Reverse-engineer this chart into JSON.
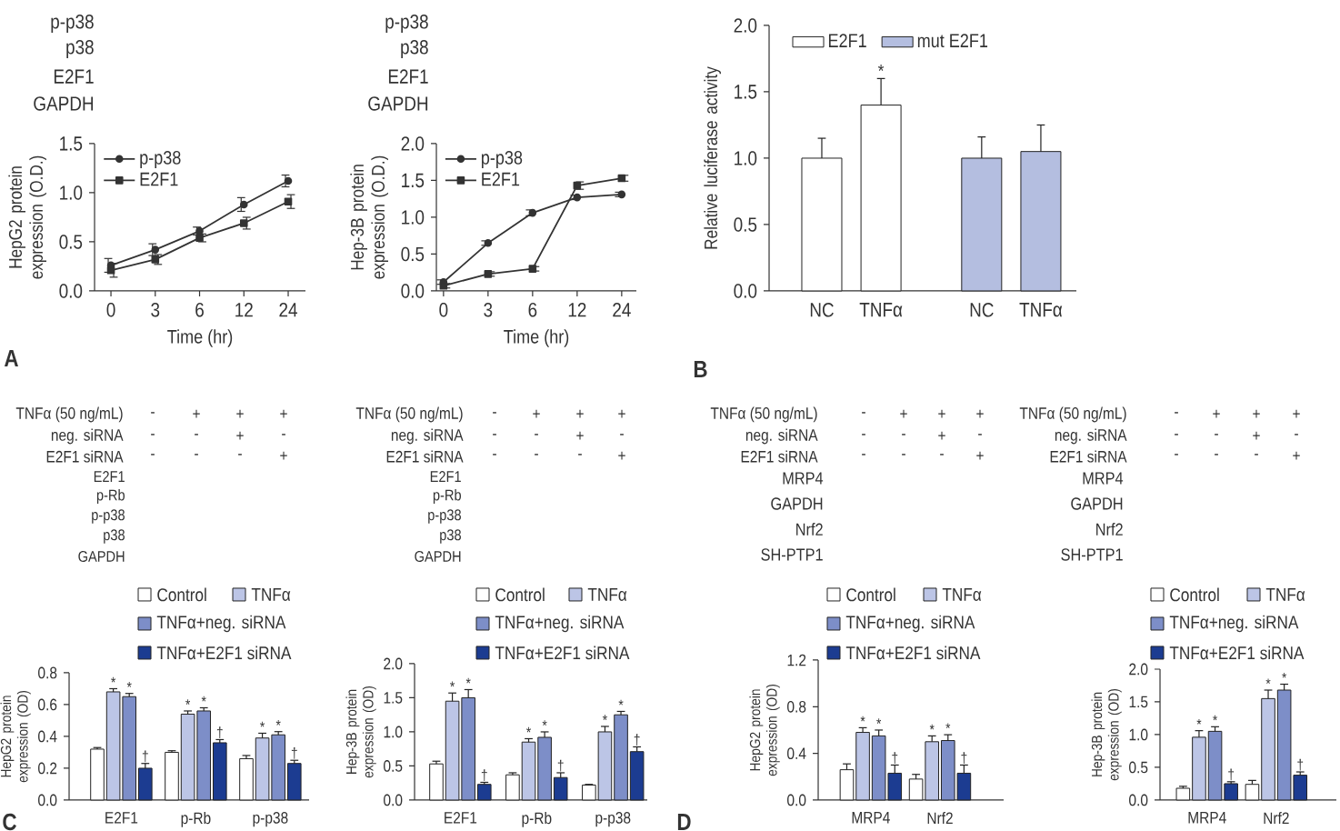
{
  "chart_data": [
    {
      "type": "line",
      "categories": [
        "0",
        "3",
        "6",
        "12",
        "24"
      ],
      "xlabel": "Time (hr)",
      "ylabel": "HepG2 protein expression (O.D.)",
      "ylim": [
        0,
        1.5
      ],
      "yticks": [
        {
          "value": 0,
          "label": "0.0"
        },
        0.5,
        {
          "value": 1,
          "label": "1.0"
        },
        1.5
      ],
      "legend": "top left",
      "series": [
        {
          "name": "p-p38",
          "color": "#333333",
          "marker": "circle",
          "values": [
            0.26,
            0.42,
            0.61,
            0.88,
            1.12
          ],
          "errors": [
            0.07,
            0.06,
            0.04,
            0.07,
            0.06
          ]
        },
        {
          "name": "E2F1",
          "color": "#333333",
          "marker": "square",
          "values": [
            0.21,
            0.32,
            0.54,
            0.69,
            0.91
          ],
          "errors": [
            0.07,
            0.05,
            0.04,
            0.06,
            0.07
          ]
        }
      ],
      "annotations": [
        "p-p38",
        "p38",
        "E2F1",
        "GAPDH",
        "A"
      ]
    },
    {
      "type": "line",
      "categories": [
        "0",
        "3",
        "6",
        "12",
        "24"
      ],
      "xlabel": "Time (hr)",
      "ylabel": "Hep-3B protein expression (O.D.)",
      "ylim": [
        0,
        2
      ],
      "yticks": [
        {
          "value": 0,
          "label": "0.0"
        },
        0.5,
        {
          "value": 1,
          "label": "1.0"
        },
        1.5,
        {
          "value": 2,
          "label": "2.0"
        }
      ],
      "legend": "top left",
      "series": [
        {
          "name": "p-p38",
          "color": "#333333",
          "marker": "circle",
          "values": [
            0.12,
            0.65,
            1.06,
            1.27,
            1.31
          ],
          "errors": [
            0.03,
            0.03,
            0.04,
            0.03,
            0.03
          ]
        },
        {
          "name": "E2F1",
          "color": "#333333",
          "marker": "square",
          "values": [
            0.07,
            0.23,
            0.3,
            1.43,
            1.53
          ],
          "errors": [
            0.03,
            0.03,
            0.03,
            0.05,
            0.04
          ]
        }
      ],
      "annotations": [
        "p-p38",
        "p38",
        "E2F1",
        "GAPDH"
      ]
    },
    {
      "type": "bar",
      "categories": [
        "NC",
        "TNFα",
        "NC",
        "TNFα"
      ],
      "ylabel": "Relative luciferase activity",
      "ylim": [
        0,
        2
      ],
      "yticks": [
        {
          "value": 0,
          "label": "0.0"
        },
        0.5,
        {
          "value": 1,
          "label": "1.0"
        },
        1.5,
        {
          "value": 2,
          "label": "2.0"
        }
      ],
      "legend": "top",
      "series": [
        {
          "name": "E2F1",
          "color": "#ffffff",
          "values": [
            1.0,
            1.4,
            null,
            null
          ],
          "errors": [
            [
              1.0,
              1.15
            ],
            [
              1.4,
              1.6
            ],
            null,
            null
          ],
          "value_labels": [
            null,
            "*",
            null,
            null
          ]
        },
        {
          "name": "mut E2F1",
          "color": "#b4bee0",
          "values": [
            null,
            null,
            1.0,
            1.05
          ],
          "errors": [
            null,
            null,
            [
              1.0,
              1.16
            ],
            [
              1.05,
              1.25
            ]
          ]
        }
      ],
      "annotations": [
        "B"
      ]
    },
    {
      "type": "bar",
      "categories": [
        "E2F1",
        "p-Rb",
        "p-p38"
      ],
      "ylabel": "HepG2 protein expression (OD)",
      "ylim": [
        0,
        0.8
      ],
      "yticks": [
        {
          "value": 0,
          "label": "0.0"
        },
        0.2,
        0.4,
        0.6,
        0.8
      ],
      "legend": "top",
      "series": [
        {
          "name": "Control",
          "color": "#ffffff",
          "values": [
            0.32,
            0.3,
            0.26
          ],
          "errors": [
            [
              0.32,
              0.33
            ],
            [
              0.3,
              0.31
            ],
            [
              0.26,
              0.28
            ]
          ]
        },
        {
          "name": "TNFα",
          "color": "#bcc5e6",
          "values": [
            0.68,
            0.54,
            0.39
          ],
          "errors": [
            [
              0.68,
              0.7
            ],
            [
              0.54,
              0.56
            ],
            [
              0.39,
              0.42
            ]
          ],
          "value_labels": [
            "*",
            "*",
            "*"
          ]
        },
        {
          "name": "TNFα+neg. siRNA",
          "color": "#7d8ec8",
          "values": [
            0.65,
            0.56,
            0.41
          ],
          "errors": [
            [
              0.65,
              0.67
            ],
            [
              0.56,
              0.58
            ],
            [
              0.41,
              0.43
            ]
          ],
          "value_labels": [
            "*",
            "*",
            "*"
          ]
        },
        {
          "name": "TNFα+E2F1 siRNA",
          "color": "#1c3c91",
          "values": [
            0.2,
            0.36,
            0.23
          ],
          "errors": [
            [
              0.2,
              0.23
            ],
            [
              0.36,
              0.38
            ],
            [
              0.23,
              0.25
            ]
          ],
          "value_labels": [
            "†",
            "†",
            "†"
          ]
        }
      ],
      "annotations": [
        "TNFα (50 ng/mL)",
        "-",
        "+",
        "+",
        "+",
        "neg. siRNA",
        "-",
        "-",
        "+",
        "-",
        "E2F1 siRNA",
        "-",
        "-",
        "-",
        "+",
        "E2F1",
        "p-Rb",
        "p-p38",
        "p38",
        "GAPDH",
        "C"
      ]
    },
    {
      "type": "bar",
      "categories": [
        "E2F1",
        "p-Rb",
        "p-p38"
      ],
      "ylabel": "Hep-3B protein expression (OD)",
      "ylim": [
        0,
        2
      ],
      "yticks": [
        {
          "value": 0,
          "label": "0.0"
        },
        0.5,
        {
          "value": 1,
          "label": "1.0"
        },
        1.5,
        {
          "value": 2,
          "label": "2.0"
        }
      ],
      "legend": "top",
      "series": [
        {
          "name": "Control",
          "color": "#ffffff",
          "values": [
            0.53,
            0.37,
            0.22
          ],
          "errors": [
            [
              0.53,
              0.57
            ],
            [
              0.37,
              0.4
            ],
            [
              0.22,
              0.23
            ]
          ]
        },
        {
          "name": "TNFα",
          "color": "#bcc5e6",
          "values": [
            1.45,
            0.85,
            1.0
          ],
          "errors": [
            [
              1.45,
              1.57
            ],
            [
              0.85,
              0.9
            ],
            [
              1.0,
              1.08
            ]
          ],
          "value_labels": [
            "*",
            "*",
            "*"
          ]
        },
        {
          "name": "TNFα+neg. siRNA",
          "color": "#7d8ec8",
          "values": [
            1.5,
            0.92,
            1.25
          ],
          "errors": [
            [
              1.5,
              1.62
            ],
            [
              0.92,
              1.0
            ],
            [
              1.25,
              1.3
            ]
          ],
          "value_labels": [
            "*",
            "*",
            "*"
          ]
        },
        {
          "name": "TNFα+E2F1 siRNA",
          "color": "#1c3c91",
          "values": [
            0.23,
            0.33,
            0.71
          ],
          "errors": [
            [
              0.23,
              0.26
            ],
            [
              0.33,
              0.4
            ],
            [
              0.71,
              0.78
            ]
          ],
          "value_labels": [
            "†",
            "†",
            "†"
          ]
        }
      ],
      "annotations": [
        "TNFα (50 ng/mL)",
        "-",
        "+",
        "+",
        "+",
        "neg. siRNA",
        "-",
        "-",
        "+",
        "-",
        "E2F1 siRNA",
        "-",
        "-",
        "-",
        "+",
        "E2F1",
        "p-Rb",
        "p-p38",
        "p38",
        "GAPDH"
      ]
    },
    {
      "type": "bar",
      "categories": [
        "MRP4",
        "Nrf2"
      ],
      "ylabel": "HepG2 protein expression (OD)",
      "ylim": [
        0,
        1.2
      ],
      "yticks": [
        {
          "value": 0,
          "label": "0.0"
        },
        0.4,
        0.8,
        1.2
      ],
      "legend": "top",
      "series": [
        {
          "name": "Control",
          "color": "#ffffff",
          "values": [
            0.26,
            0.18
          ],
          "errors": [
            [
              0.26,
              0.31
            ],
            [
              0.18,
              0.22
            ]
          ]
        },
        {
          "name": "TNFα",
          "color": "#bcc5e6",
          "values": [
            0.58,
            0.5
          ],
          "errors": [
            [
              0.58,
              0.62
            ],
            [
              0.5,
              0.55
            ]
          ],
          "value_labels": [
            "*",
            "*"
          ]
        },
        {
          "name": "TNFα+neg. siRNA",
          "color": "#7d8ec8",
          "values": [
            0.55,
            0.51
          ],
          "errors": [
            [
              0.55,
              0.6
            ],
            [
              0.51,
              0.56
            ]
          ],
          "value_labels": [
            "*",
            "*"
          ]
        },
        {
          "name": "TNFα+E2F1 siRNA",
          "color": "#1c3c91",
          "values": [
            0.23,
            0.23
          ],
          "errors": [
            [
              0.23,
              0.3
            ],
            [
              0.23,
              0.3
            ]
          ],
          "value_labels": [
            "†",
            "†"
          ]
        }
      ],
      "annotations": [
        "TNFα (50 ng/mL)",
        "-",
        "+",
        "+",
        "+",
        "neg. siRNA",
        "-",
        "-",
        "+",
        "-",
        "E2F1 siRNA",
        "-",
        "-",
        "-",
        "+",
        "MRP4",
        "GAPDH",
        "Nrf2",
        "SH-PTP1",
        "D"
      ]
    },
    {
      "type": "bar",
      "categories": [
        "MRP4",
        "Nrf2"
      ],
      "ylabel": "Hep-3B protein expression (OD)",
      "ylim": [
        0,
        2
      ],
      "yticks": [
        {
          "value": 0,
          "label": "0.0"
        },
        0.5,
        {
          "value": 1,
          "label": "1.0"
        },
        1.5,
        {
          "value": 2,
          "label": "2.0"
        }
      ],
      "legend": "top",
      "series": [
        {
          "name": "Control",
          "color": "#ffffff",
          "values": [
            0.18,
            0.24
          ],
          "errors": [
            [
              0.18,
              0.21
            ],
            [
              0.24,
              0.3
            ]
          ]
        },
        {
          "name": "TNFα",
          "color": "#bcc5e6",
          "values": [
            0.96,
            1.55
          ],
          "errors": [
            [
              0.96,
              1.06
            ],
            [
              1.55,
              1.68
            ]
          ],
          "value_labels": [
            "*",
            "*"
          ]
        },
        {
          "name": "TNFα+neg. siRNA",
          "color": "#7d8ec8",
          "values": [
            1.05,
            1.68
          ],
          "errors": [
            [
              1.05,
              1.12
            ],
            [
              1.68,
              1.77
            ]
          ],
          "value_labels": [
            "*",
            "*"
          ]
        },
        {
          "name": "TNFα+E2F1 siRNA",
          "color": "#1c3c91",
          "values": [
            0.25,
            0.38
          ],
          "errors": [
            [
              0.25,
              0.28
            ],
            [
              0.38,
              0.43
            ]
          ],
          "value_labels": [
            "†",
            "†"
          ]
        }
      ],
      "annotations": [
        "TNFα (50 ng/mL)",
        "-",
        "+",
        "+",
        "+",
        "neg. siRNA",
        "-",
        "-",
        "+",
        "-",
        "E2F1 siRNA",
        "-",
        "-",
        "-",
        "+",
        "MRP4",
        "GAPDH",
        "Nrf2",
        "SH-PTP1"
      ]
    }
  ]
}
